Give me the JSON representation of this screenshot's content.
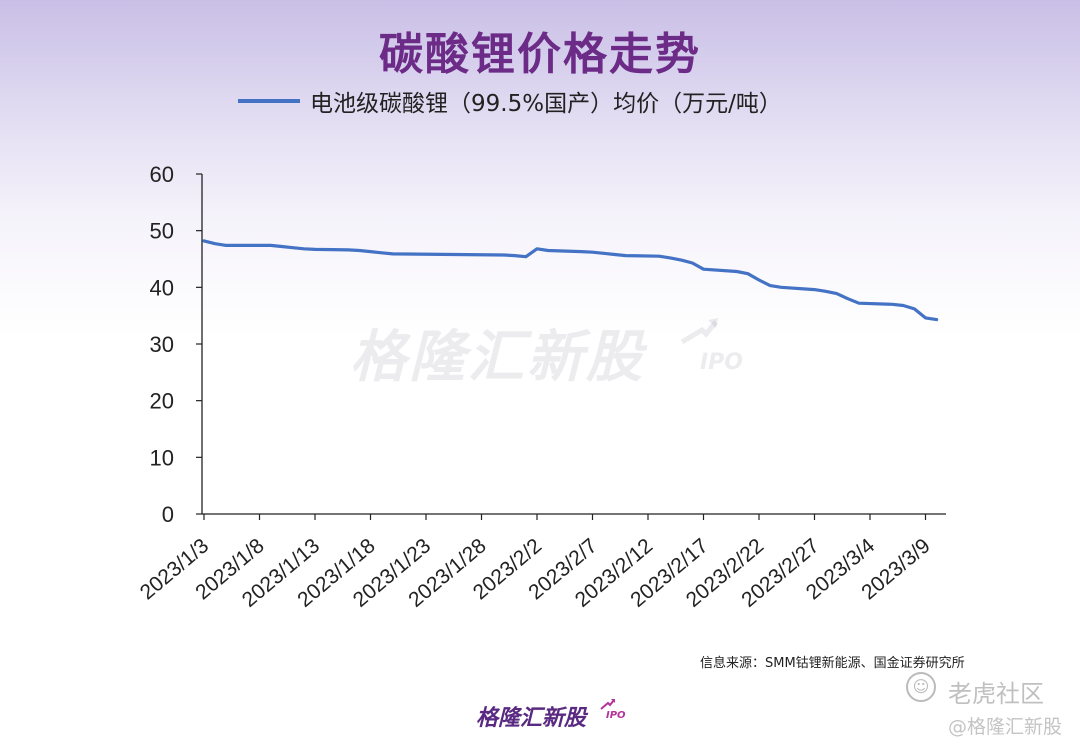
{
  "title": "碳酸锂价格走势",
  "legend": {
    "label": "电池级碳酸锂（99.5%国产）均价（万元/吨）",
    "color": "#4472c4"
  },
  "watermark": {
    "text": "格隆汇新股",
    "suffix": "IPO"
  },
  "source": "信息来源：SMM钴锂新能源、国金证券研究所",
  "brand": {
    "text": "格隆汇新股",
    "suffix": "IPO"
  },
  "social": {
    "platform": "老虎社区",
    "handle": "@格隆汇新股",
    "icon": "tiger-icon"
  },
  "colors": {
    "title": "#6b2b86",
    "line": "#4472c4",
    "axis": "#222222"
  },
  "chart_data": {
    "type": "line",
    "ylim": [
      0,
      60
    ],
    "yticks": [
      0,
      10,
      20,
      30,
      40,
      50,
      60
    ],
    "xticklabels": [
      "2023/1/3",
      "2023/1/8",
      "2023/1/13",
      "2023/1/18",
      "2023/1/23",
      "2023/1/28",
      "2023/2/2",
      "2023/2/7",
      "2023/2/12",
      "2023/2/17",
      "2023/2/22",
      "2023/2/27",
      "2023/3/4",
      "2023/3/9"
    ],
    "grid": false,
    "legend_position": "top",
    "series": [
      {
        "name": "电池级碳酸锂（99.5%国产）均价（万元/吨）",
        "x": [
          "2023/1/3",
          "2023/1/4",
          "2023/1/5",
          "2023/1/6",
          "2023/1/9",
          "2023/1/10",
          "2023/1/11",
          "2023/1/12",
          "2023/1/13",
          "2023/1/16",
          "2023/1/17",
          "2023/1/18",
          "2023/1/19",
          "2023/1/20",
          "2023/1/30",
          "2023/1/31",
          "2023/2/1",
          "2023/2/2",
          "2023/2/3",
          "2023/2/6",
          "2023/2/7",
          "2023/2/8",
          "2023/2/9",
          "2023/2/10",
          "2023/2/13",
          "2023/2/14",
          "2023/2/15",
          "2023/2/16",
          "2023/2/17",
          "2023/2/20",
          "2023/2/21",
          "2023/2/22",
          "2023/2/23",
          "2023/2/24",
          "2023/2/27",
          "2023/2/28",
          "2023/3/1",
          "2023/3/2",
          "2023/3/3",
          "2023/3/6",
          "2023/3/7",
          "2023/3/8",
          "2023/3/9",
          "2023/3/10"
        ],
        "values": [
          48.2,
          47.7,
          47.4,
          47.4,
          47.4,
          47.2,
          47.0,
          46.8,
          46.7,
          46.6,
          46.5,
          46.3,
          46.1,
          45.9,
          45.7,
          45.6,
          45.4,
          46.8,
          46.5,
          46.3,
          46.2,
          46.0,
          45.8,
          45.6,
          45.5,
          45.2,
          44.8,
          44.3,
          43.2,
          42.8,
          42.4,
          41.3,
          40.3,
          40.0,
          39.6,
          39.3,
          38.9,
          38.0,
          37.2,
          37.0,
          36.8,
          36.2,
          34.6,
          34.3
        ]
      }
    ]
  }
}
